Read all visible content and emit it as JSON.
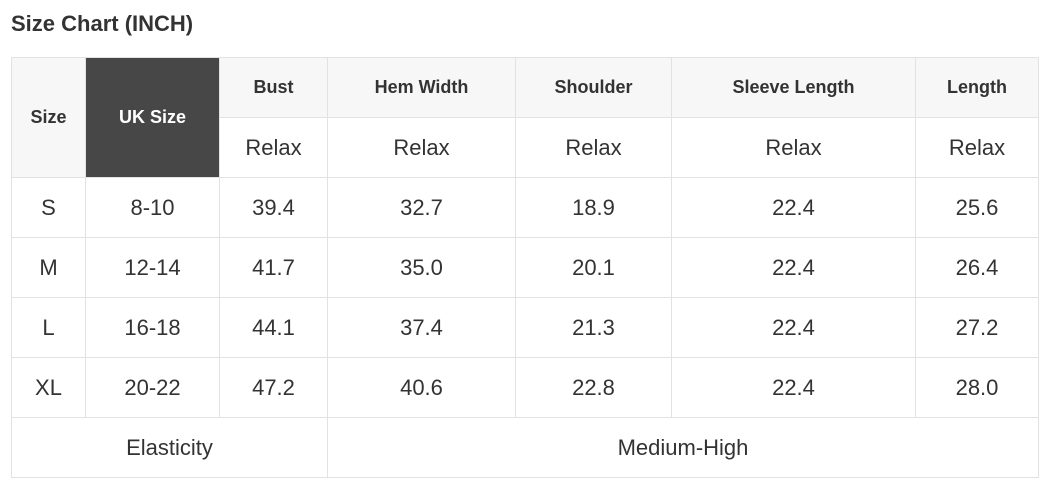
{
  "title": "Size Chart (INCH)",
  "header": {
    "size": "Size",
    "uk_size": "UK Size",
    "columns": [
      "Bust",
      "Hem Width",
      "Shoulder",
      "Sleeve Length",
      "Length"
    ],
    "fit": [
      "Relax",
      "Relax",
      "Relax",
      "Relax",
      "Relax"
    ]
  },
  "rows": [
    {
      "size": "S",
      "uk": "8-10",
      "values": [
        "39.4",
        "32.7",
        "18.9",
        "22.4",
        "25.6"
      ]
    },
    {
      "size": "M",
      "uk": "12-14",
      "values": [
        "41.7",
        "35.0",
        "20.1",
        "22.4",
        "26.4"
      ]
    },
    {
      "size": "L",
      "uk": "16-18",
      "values": [
        "44.1",
        "37.4",
        "21.3",
        "22.4",
        "27.2"
      ]
    },
    {
      "size": "XL",
      "uk": "20-22",
      "values": [
        "47.2",
        "40.6",
        "22.8",
        "22.4",
        "28.0"
      ]
    }
  ],
  "footer": {
    "label": "Elasticity",
    "value": "Medium-High"
  },
  "colors": {
    "header_bg": "#f7f7f7",
    "highlight_bg": "#474747",
    "border": "#e2e2e2",
    "text": "#333333"
  }
}
